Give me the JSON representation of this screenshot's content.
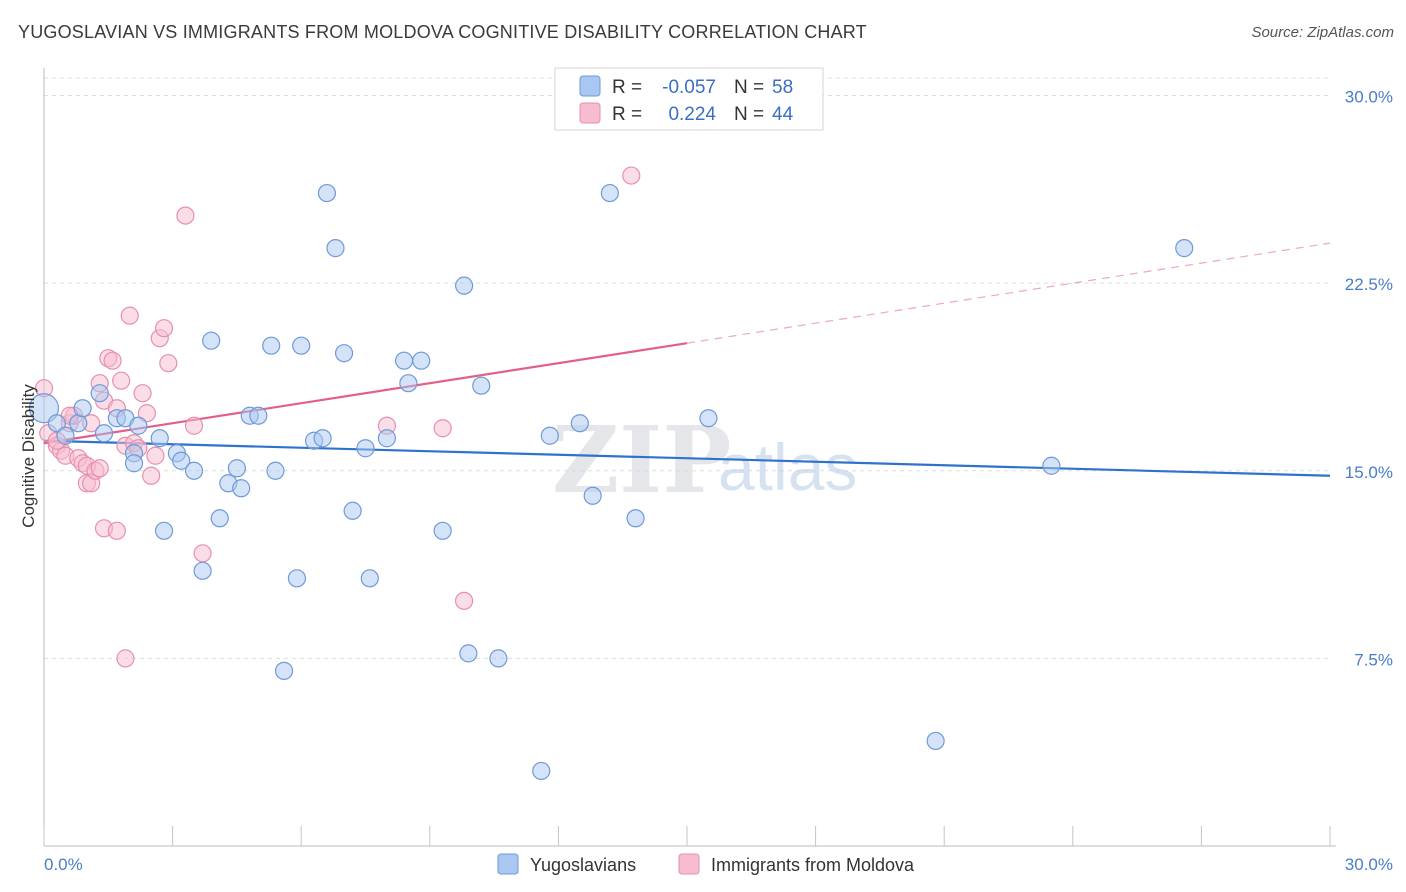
{
  "title": "YUGOSLAVIAN VS IMMIGRANTS FROM MOLDOVA COGNITIVE DISABILITY CORRELATION CHART",
  "source": "Source: ZipAtlas.com",
  "watermark": {
    "part1": "ZIP",
    "part2": "atlas"
  },
  "colors": {
    "blue_fill": "#a9c7f0",
    "blue_stroke": "#6f9ad8",
    "blue_line": "#2f72cc",
    "pink_fill": "#f7bcd0",
    "pink_stroke": "#e690ae",
    "pink_line": "#e0608a",
    "grid": "#dddddd",
    "tick_label": "#4a7cc9"
  },
  "legend": {
    "rows": [
      {
        "r_label": "R =",
        "r_value": "-0.057",
        "n_label": "N =",
        "n_value": "58"
      },
      {
        "r_label": "R =",
        "r_value": "0.224",
        "n_label": "N =",
        "n_value": "44"
      }
    ]
  },
  "chart_data": {
    "type": "scatter",
    "title": "YUGOSLAVIAN VS IMMIGRANTS FROM MOLDOVA COGNITIVE DISABILITY CORRELATION CHART",
    "xlabel": "",
    "ylabel": "Cognitive Disability",
    "xlim": [
      0,
      30
    ],
    "ylim": [
      0,
      30.7
    ],
    "x_tick_labels": [
      "0.0%",
      "30.0%"
    ],
    "y_ticks": [
      7.5,
      15.0,
      22.5,
      30.0
    ],
    "y_tick_labels": [
      "7.5%",
      "15.0%",
      "22.5%",
      "30.0%"
    ],
    "grid": true,
    "legend_position": "top-center",
    "series": [
      {
        "name": "Yugoslavians",
        "r": -0.057,
        "n": 58,
        "trend": {
          "x": [
            0,
            30
          ],
          "y": [
            16.2,
            14.8
          ]
        },
        "points": [
          [
            0.0,
            17.5,
            1.7
          ],
          [
            0.3,
            16.9,
            1.0
          ],
          [
            0.5,
            16.4,
            1.0
          ],
          [
            0.8,
            16.9,
            1.0
          ],
          [
            0.9,
            17.5,
            1.0
          ],
          [
            1.3,
            18.1,
            1.0
          ],
          [
            1.4,
            16.5,
            1.0
          ],
          [
            1.7,
            17.1,
            1.0
          ],
          [
            1.9,
            17.1,
            1.0
          ],
          [
            2.1,
            15.7,
            1.0
          ],
          [
            2.2,
            16.8,
            1.0
          ],
          [
            2.1,
            15.3,
            1.0
          ],
          [
            2.7,
            16.3,
            1.0
          ],
          [
            2.8,
            12.6,
            1.0
          ],
          [
            3.1,
            15.7,
            1.0
          ],
          [
            3.2,
            15.4,
            1.0
          ],
          [
            3.5,
            15.0,
            1.0
          ],
          [
            3.7,
            11.0,
            1.0
          ],
          [
            3.9,
            20.2,
            1.0
          ],
          [
            4.1,
            13.1,
            1.0
          ],
          [
            4.3,
            14.5,
            1.0
          ],
          [
            4.5,
            15.1,
            1.0
          ],
          [
            4.6,
            14.3,
            1.0
          ],
          [
            4.8,
            17.2,
            1.0
          ],
          [
            5.0,
            17.2,
            1.0
          ],
          [
            5.3,
            20.0,
            1.0
          ],
          [
            5.4,
            15.0,
            1.0
          ],
          [
            5.6,
            7.0,
            1.0
          ],
          [
            5.9,
            10.7,
            1.0
          ],
          [
            6.0,
            20.0,
            1.0
          ],
          [
            6.3,
            16.2,
            1.0
          ],
          [
            6.5,
            16.3,
            1.0
          ],
          [
            6.6,
            26.1,
            1.0
          ],
          [
            6.8,
            23.9,
            1.0
          ],
          [
            7.0,
            19.7,
            1.0
          ],
          [
            7.2,
            13.4,
            1.0
          ],
          [
            7.5,
            15.9,
            1.0
          ],
          [
            7.6,
            10.7,
            1.0
          ],
          [
            8.0,
            16.3,
            1.0
          ],
          [
            8.4,
            19.4,
            1.0
          ],
          [
            8.5,
            18.5,
            1.0
          ],
          [
            8.8,
            19.4,
            1.0
          ],
          [
            9.3,
            12.6,
            1.0
          ],
          [
            9.8,
            22.4,
            1.0
          ],
          [
            9.9,
            7.7,
            1.0
          ],
          [
            10.2,
            18.4,
            1.0
          ],
          [
            10.6,
            7.5,
            1.0
          ],
          [
            11.6,
            3.0,
            1.0
          ],
          [
            11.8,
            16.4,
            1.0
          ],
          [
            12.5,
            16.9,
            1.0
          ],
          [
            12.8,
            14.0,
            1.0
          ],
          [
            13.2,
            26.1,
            1.0
          ],
          [
            13.8,
            13.1,
            1.0
          ],
          [
            15.5,
            17.1,
            1.0
          ],
          [
            20.8,
            4.2,
            1.0
          ],
          [
            23.5,
            15.2,
            1.0
          ],
          [
            26.6,
            23.9,
            1.0
          ]
        ]
      },
      {
        "name": "Immigrants from Moldova",
        "r": 0.224,
        "n": 44,
        "trend": {
          "x": [
            0,
            15
          ],
          "y": [
            16.1,
            20.1
          ]
        },
        "trend_extension": {
          "x": [
            15,
            30
          ],
          "y": [
            20.1,
            24.1
          ]
        },
        "points": [
          [
            0.0,
            18.3,
            1.0
          ],
          [
            0.1,
            16.5,
            1.0
          ],
          [
            0.3,
            16.0,
            1.0
          ],
          [
            0.4,
            15.8,
            1.0
          ],
          [
            0.5,
            15.6,
            1.0
          ],
          [
            0.6,
            16.9,
            1.0
          ],
          [
            0.7,
            17.2,
            1.0
          ],
          [
            0.8,
            15.5,
            1.0
          ],
          [
            0.9,
            15.3,
            1.0
          ],
          [
            1.0,
            14.5,
            1.0
          ],
          [
            1.0,
            15.2,
            1.0
          ],
          [
            1.1,
            14.5,
            1.0
          ],
          [
            1.1,
            16.9,
            1.0
          ],
          [
            1.2,
            15.0,
            1.0
          ],
          [
            1.3,
            15.1,
            1.0
          ],
          [
            1.3,
            18.5,
            1.0
          ],
          [
            1.4,
            12.7,
            1.0
          ],
          [
            1.4,
            17.8,
            1.0
          ],
          [
            1.5,
            19.5,
            1.0
          ],
          [
            1.6,
            19.4,
            1.0
          ],
          [
            1.7,
            17.5,
            1.0
          ],
          [
            1.7,
            12.6,
            1.0
          ],
          [
            1.8,
            18.6,
            1.0
          ],
          [
            1.9,
            16.0,
            1.0
          ],
          [
            1.9,
            7.5,
            1.0
          ],
          [
            2.0,
            21.2,
            1.0
          ],
          [
            2.1,
            16.1,
            1.0
          ],
          [
            2.2,
            15.9,
            1.0
          ],
          [
            2.3,
            18.1,
            1.0
          ],
          [
            2.4,
            17.3,
            1.0
          ],
          [
            2.5,
            14.8,
            1.0
          ],
          [
            2.6,
            15.6,
            1.0
          ],
          [
            2.7,
            20.3,
            1.0
          ],
          [
            2.8,
            20.7,
            1.0
          ],
          [
            2.9,
            19.3,
            1.0
          ],
          [
            3.3,
            25.2,
            1.0
          ],
          [
            3.5,
            16.8,
            1.0
          ],
          [
            3.7,
            11.7,
            1.0
          ],
          [
            8.0,
            16.8,
            1.0
          ],
          [
            9.3,
            16.7,
            1.0
          ],
          [
            9.8,
            9.8,
            1.0
          ],
          [
            13.7,
            26.8,
            1.0
          ],
          [
            0.3,
            16.2,
            1.0
          ],
          [
            0.6,
            17.2,
            1.0
          ]
        ]
      }
    ]
  }
}
